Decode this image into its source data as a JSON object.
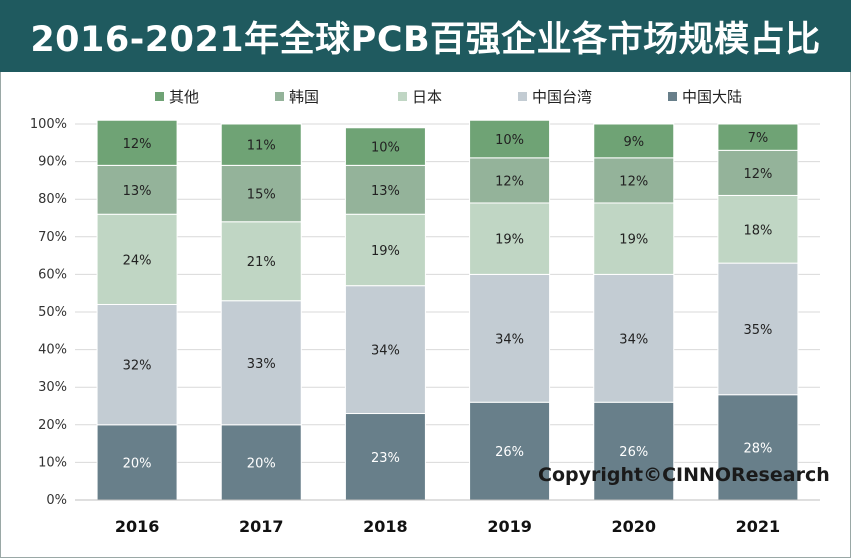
{
  "header": {
    "title": "2016-2021年全球PCB百强企业各市场规模占比"
  },
  "copyright": "Copyright©CINNOResearch",
  "chart_data": {
    "type": "bar",
    "stacked": true,
    "title": "2016-2021年全球PCB百强企业各市场规模占比",
    "xlabel": "",
    "ylabel": "",
    "ylim": [
      0,
      100
    ],
    "y_ticks": [
      "0%",
      "10%",
      "20%",
      "30%",
      "40%",
      "50%",
      "60%",
      "70%",
      "80%",
      "90%",
      "100%"
    ],
    "categories": [
      "2016",
      "2017",
      "2018",
      "2019",
      "2020",
      "2021"
    ],
    "legend_position": "top",
    "legend_order": [
      "其他",
      "韩国",
      "日本",
      "中国台湾",
      "中国大陆"
    ],
    "series": [
      {
        "name": "中国大陆",
        "values": [
          20,
          20,
          23,
          26,
          26,
          28
        ],
        "labels": [
          "20%",
          "20%",
          "23%",
          "26%",
          "26%",
          "28%"
        ],
        "color": "#687f8a",
        "label_color": "#ffffff"
      },
      {
        "name": "中国台湾",
        "values": [
          32,
          33,
          34,
          34,
          34,
          35
        ],
        "labels": [
          "32%",
          "33%",
          "34%",
          "34%",
          "34%",
          "35%"
        ],
        "color": "#c3ccd3",
        "label_color": "#222222"
      },
      {
        "name": "日本",
        "values": [
          24,
          21,
          19,
          19,
          19,
          18
        ],
        "labels": [
          "24%",
          "21%",
          "19%",
          "19%",
          "19%",
          "18%"
        ],
        "color": "#c0d6c4",
        "label_color": "#222222"
      },
      {
        "name": "韩国",
        "values": [
          13,
          15,
          13,
          12,
          12,
          12
        ],
        "labels": [
          "13%",
          "15%",
          "13%",
          "12%",
          "12%",
          "12%"
        ],
        "color": "#94b39a",
        "label_color": "#222222"
      },
      {
        "name": "其他",
        "values": [
          12,
          11,
          10,
          10,
          9,
          7
        ],
        "labels": [
          "12%",
          "11%",
          "10%",
          "10%",
          "9%",
          "7%"
        ],
        "color": "#6fa375",
        "label_color": "#222222"
      }
    ]
  }
}
